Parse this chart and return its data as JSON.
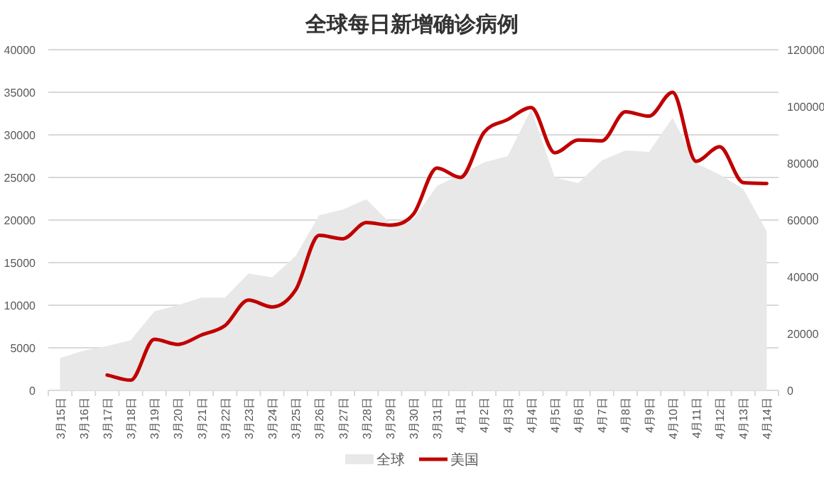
{
  "chart_data": {
    "type": "line",
    "title": "全球每日新增确诊病例",
    "categories": [
      "3月15日",
      "3月16日",
      "3月17日",
      "3月18日",
      "3月19日",
      "3月20日",
      "3月21日",
      "3月22日",
      "3月23日",
      "3月24日",
      "3月25日",
      "3月26日",
      "3月27日",
      "3月28日",
      "3月29日",
      "3月30日",
      "3月31日",
      "4月1日",
      "4月2日",
      "4月3日",
      "4月4日",
      "4月5日",
      "4月6日",
      "4月7日",
      "4月8日",
      "4月9日",
      "4月10日",
      "4月11日",
      "4月12日",
      "4月13日",
      "4月14日"
    ],
    "series": [
      {
        "name": "全球",
        "type": "area",
        "axis": "y2",
        "color": "#e8e8e8",
        "values": [
          11400,
          14000,
          15600,
          17700,
          27800,
          30000,
          32700,
          32700,
          41200,
          39800,
          47300,
          61700,
          63700,
          67300,
          59000,
          60300,
          72000,
          76000,
          80300,
          82500,
          99000,
          75000,
          73000,
          81000,
          84500,
          84000,
          96000,
          80000,
          76000,
          71000,
          56000
        ]
      },
      {
        "name": "美国",
        "color": "#c00000",
        "values": [
          null,
          null,
          1800,
          1200,
          6000,
          5400,
          6500,
          7600,
          10600,
          9800,
          11800,
          18200,
          17800,
          19700,
          19400,
          20700,
          26100,
          25000,
          30300,
          31800,
          33200,
          27900,
          29400,
          29300,
          32700,
          32200,
          35000,
          26900,
          28600,
          24400,
          24300
        ]
      }
    ],
    "ylim": [
      0,
      40000
    ],
    "yticks": [
      0,
      5000,
      10000,
      15000,
      20000,
      25000,
      30000,
      35000,
      40000
    ],
    "y2lim": [
      0,
      120000
    ],
    "y2ticks": [
      0,
      20000,
      40000,
      60000,
      80000,
      100000,
      120000
    ],
    "grid": "y",
    "legend": "bottom",
    "marker": "none",
    "line_style": "solid"
  }
}
